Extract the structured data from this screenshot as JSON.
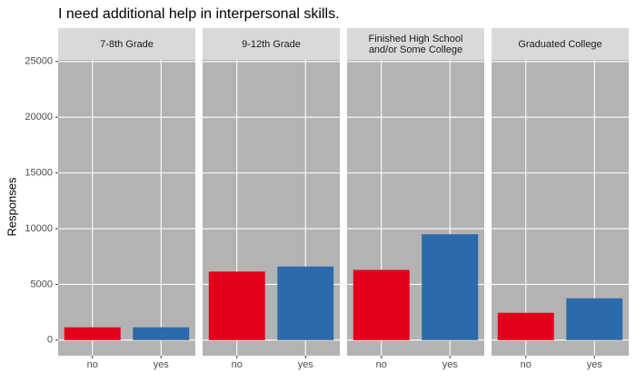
{
  "chart_data": {
    "type": "bar",
    "title": "I need additional help in interpersonal skills.",
    "ylabel": "Responses",
    "categories": [
      "no",
      "yes"
    ],
    "colors": [
      "#e3001b",
      "#2b6aab"
    ],
    "ylim": [
      -1400,
      25150
    ],
    "yticks": [
      0,
      5000,
      10000,
      15000,
      20000,
      25000
    ],
    "grid": true,
    "facets": [
      {
        "label": "7-8th Grade",
        "values": [
          1150,
          1150
        ]
      },
      {
        "label": "9-12th Grade",
        "values": [
          6150,
          6600
        ]
      },
      {
        "label": "Finished High School\nand/or Some College",
        "values": [
          6300,
          9500
        ]
      },
      {
        "label": "Graduated College",
        "values": [
          2450,
          3750
        ]
      }
    ]
  }
}
